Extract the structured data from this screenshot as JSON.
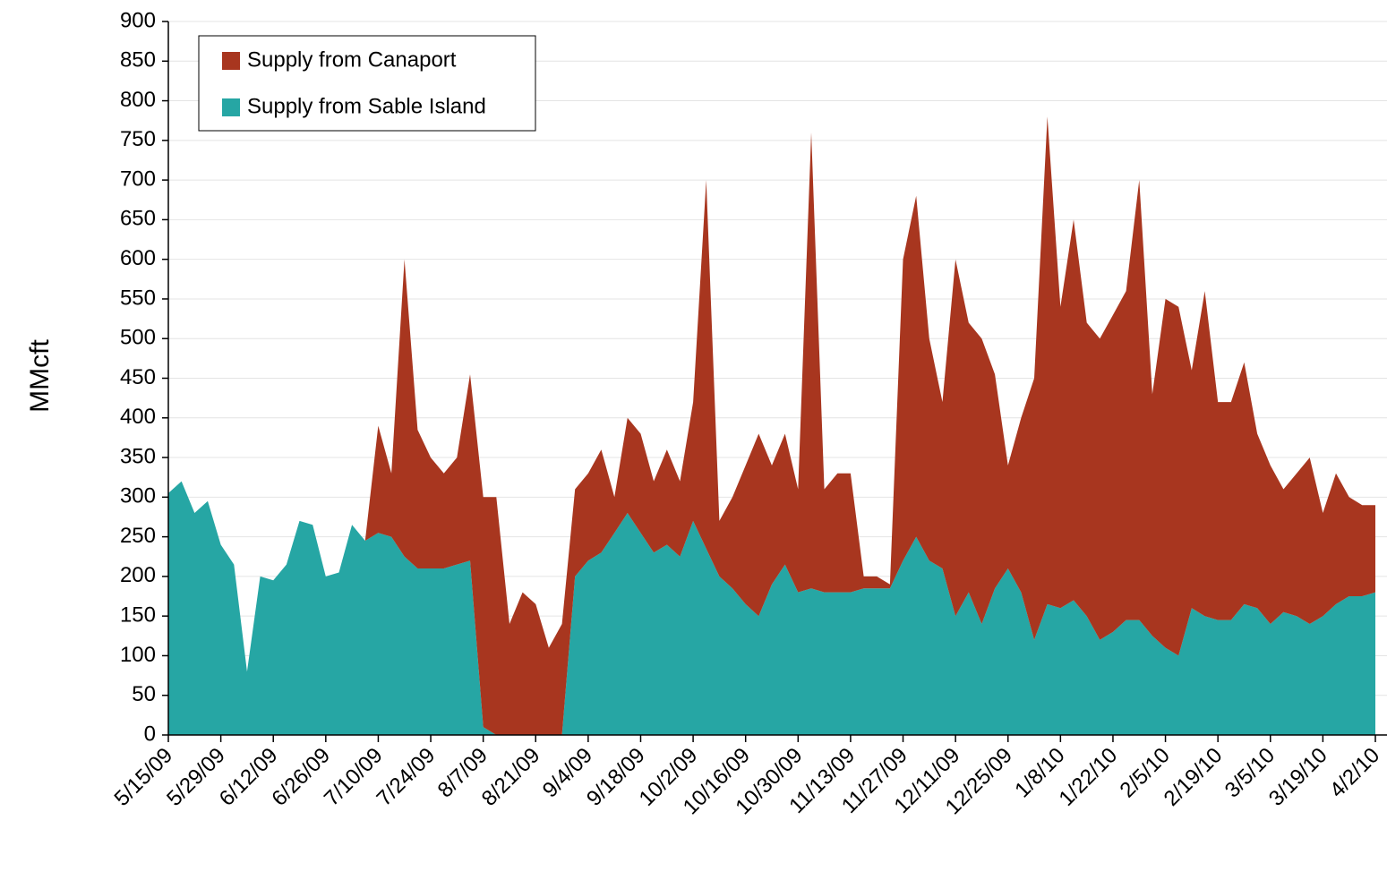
{
  "chart_data": {
    "type": "stacked_area",
    "y_label": "MMcft",
    "categories": [
      "5/15/09",
      null,
      null,
      null,
      "5/29/09",
      null,
      null,
      null,
      "6/12/09",
      null,
      null,
      null,
      "6/26/09",
      null,
      null,
      null,
      "7/10/09",
      null,
      null,
      null,
      "7/24/09",
      null,
      null,
      null,
      "8/7/09",
      null,
      null,
      null,
      "8/21/09",
      null,
      null,
      null,
      "9/4/09",
      null,
      null,
      null,
      "9/18/09",
      null,
      null,
      null,
      "10/2/09",
      null,
      null,
      null,
      "10/16/09",
      null,
      null,
      null,
      "10/30/09",
      null,
      null,
      null,
      "11/13/09",
      null,
      null,
      null,
      "11/27/09",
      null,
      null,
      null,
      "12/11/09",
      null,
      null,
      null,
      "12/25/09",
      null,
      null,
      null,
      "1/8/10",
      null,
      null,
      null,
      "1/22/10",
      null,
      null,
      null,
      "2/5/10",
      null,
      null,
      null,
      "2/19/10",
      null,
      null,
      null,
      "3/5/10",
      null,
      null,
      null,
      "3/19/10",
      null,
      null,
      null,
      "4/2/10"
    ],
    "series": [
      {
        "name": "Supply from Canaport",
        "color": "#a8361f",
        "values": [
          0,
          0,
          0,
          0,
          0,
          0,
          0,
          0,
          0,
          0,
          0,
          0,
          0,
          0,
          0,
          0,
          135,
          80,
          375,
          175,
          140,
          120,
          135,
          235,
          290,
          300,
          140,
          180,
          165,
          110,
          140,
          110,
          110,
          130,
          45,
          120,
          125,
          90,
          120,
          95,
          150,
          465,
          70,
          115,
          175,
          230,
          150,
          165,
          130,
          575,
          130,
          150,
          150,
          15,
          15,
          5,
          380,
          430,
          280,
          210,
          450,
          340,
          360,
          270,
          130,
          220,
          330,
          615,
          380,
          480,
          370,
          380,
          400,
          415,
          555,
          305,
          440,
          440,
          300,
          410,
          275,
          275,
          305,
          220,
          200,
          155,
          180,
          210,
          130,
          165,
          125,
          115,
          110
        ]
      },
      {
        "name": "Supply from Sable Island",
        "color": "#26a6a4",
        "values": [
          305,
          320,
          280,
          295,
          240,
          215,
          80,
          200,
          195,
          215,
          270,
          265,
          200,
          205,
          265,
          245,
          255,
          250,
          225,
          210,
          210,
          210,
          215,
          220,
          10,
          0,
          0,
          0,
          0,
          0,
          0,
          200,
          220,
          230,
          255,
          280,
          255,
          230,
          240,
          225,
          270,
          235,
          200,
          185,
          165,
          150,
          190,
          215,
          180,
          185,
          180,
          180,
          180,
          185,
          185,
          185,
          220,
          250,
          220,
          210,
          150,
          180,
          140,
          185,
          210,
          180,
          120,
          165,
          160,
          170,
          150,
          120,
          130,
          145,
          145,
          125,
          110,
          100,
          160,
          150,
          145,
          145,
          165,
          160,
          140,
          155,
          150,
          140,
          150,
          165,
          175,
          175,
          180
        ]
      }
    ],
    "ylim": [
      0,
      900
    ],
    "yticks": [
      0,
      50,
      100,
      150,
      200,
      250,
      300,
      350,
      400,
      450,
      500,
      550,
      600,
      650,
      700,
      750,
      800,
      850,
      900
    ],
    "grid": true,
    "legend": "top-left"
  }
}
